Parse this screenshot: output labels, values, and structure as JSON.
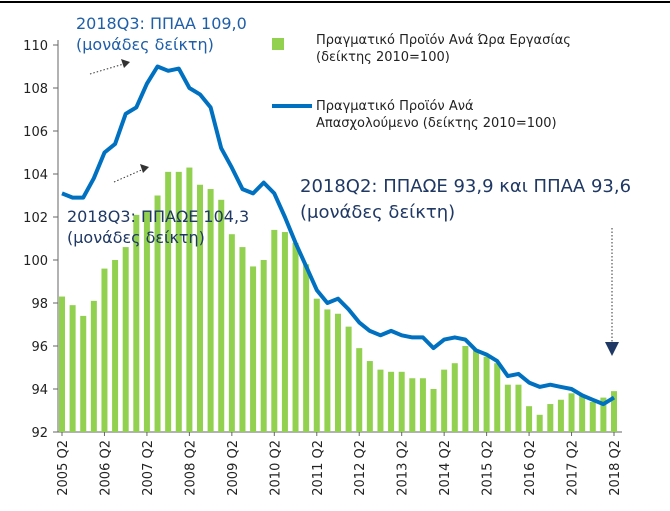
{
  "chart_data": {
    "type": "bar_line",
    "categories": [
      "2005 Q2",
      null,
      null,
      null,
      "2006 Q2",
      null,
      null,
      null,
      "2007 Q2",
      null,
      null,
      null,
      "2008 Q2",
      null,
      null,
      null,
      "2009 Q2",
      null,
      null,
      null,
      "2010 Q2",
      null,
      null,
      null,
      "2011 Q2",
      null,
      null,
      null,
      "2012 Q2",
      null,
      null,
      null,
      "2013 Q2",
      null,
      null,
      null,
      "2014 Q2",
      null,
      null,
      null,
      "2015 Q2",
      null,
      null,
      null,
      "2016 Q2",
      null,
      null,
      null,
      "2017 Q2",
      null,
      null,
      null,
      "2018 Q2"
    ],
    "series": [
      {
        "name": "Πραγματικό Προϊόν Ανά Ώρα Εργασίας\n(δείκτης 2010=100)",
        "type": "bar",
        "color": "#92d050",
        "values": [
          98.3,
          97.9,
          97.4,
          98.1,
          99.6,
          100.0,
          100.6,
          102.1,
          102.3,
          103.0,
          104.1,
          104.1,
          104.3,
          103.5,
          103.3,
          102.8,
          101.2,
          100.6,
          99.7,
          100.0,
          101.4,
          101.3,
          100.8,
          99.8,
          98.2,
          97.7,
          97.5,
          96.9,
          95.9,
          95.3,
          94.9,
          94.8,
          94.8,
          94.5,
          94.5,
          94.0,
          94.9,
          95.2,
          96.0,
          95.8,
          95.5,
          95.2,
          94.2,
          94.2,
          93.2,
          92.8,
          93.3,
          93.5,
          93.8,
          93.7,
          93.4,
          93.6,
          93.9
        ]
      },
      {
        "name": "Πραγματικό Προϊόν Ανά\nΑπασχολούμενο (δείκτης 2010=100)",
        "type": "line",
        "color": "#0070c0",
        "values": [
          103.1,
          102.9,
          102.9,
          103.8,
          105.0,
          105.4,
          106.8,
          107.1,
          108.2,
          109.0,
          108.8,
          108.9,
          108.0,
          107.7,
          107.1,
          105.2,
          104.3,
          103.3,
          103.1,
          103.6,
          103.1,
          102.0,
          100.8,
          99.7,
          98.6,
          98.0,
          98.2,
          97.7,
          97.1,
          96.7,
          96.5,
          96.7,
          96.5,
          96.4,
          96.4,
          95.9,
          96.3,
          96.4,
          96.3,
          95.8,
          95.6,
          95.3,
          94.6,
          94.7,
          94.3,
          94.1,
          94.2,
          94.1,
          94.0,
          93.7,
          93.5,
          93.3,
          93.6
        ]
      }
    ],
    "ylim": [
      92,
      110
    ],
    "yticks": [
      92,
      94,
      96,
      98,
      100,
      102,
      104,
      106,
      108,
      110
    ],
    "annotations": [
      "2018Q3: ΠΠΑΑ 109,0\n(μονάδες δείκτη)",
      "2018Q3: ΠΠΑΩΕ 104,3\n(μονάδες δείκτη)",
      "2018Q2: ΠΠΑΩΕ 93,9 και ΠΠΑΑ 93,6\n(μονάδες δείκτη)"
    ]
  }
}
